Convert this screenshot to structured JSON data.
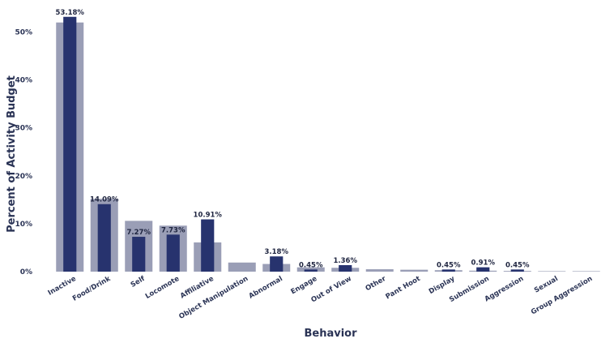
{
  "chart_data": {
    "type": "bar",
    "title": "",
    "xlabel": "Behavior",
    "ylabel": "Percent of Activity Budget",
    "ylim": [
      0,
      55
    ],
    "yticks": [
      "0%",
      "10%",
      "20%",
      "30%",
      "40%",
      "50%"
    ],
    "ytick_values": [
      0,
      10,
      20,
      30,
      40,
      50
    ],
    "grid": false,
    "legend": "none",
    "categories": [
      "Inactive",
      "Food/Drink",
      "Self",
      "Locomote",
      "Affiliative",
      "Object Manipulation",
      "Abnormal",
      "Engage",
      "Out of View",
      "Other",
      "Pant Hoot",
      "Display",
      "Submission",
      "Aggression",
      "Sexual",
      "Group Aggression"
    ],
    "series": [
      {
        "color": "#9a9eb6",
        "values": [
          52.0,
          15.2,
          10.6,
          9.6,
          6.1,
          1.9,
          1.6,
          0.9,
          0.8,
          0.5,
          0.4,
          0.3,
          0.2,
          0.15,
          0.1,
          0.1
        ]
      },
      {
        "color": "#27336e",
        "values": [
          53.18,
          14.09,
          7.27,
          7.73,
          10.91,
          0,
          3.18,
          0.45,
          1.36,
          0,
          0,
          0.45,
          0.91,
          0.45,
          0,
          0
        ],
        "labels": [
          "53.18%",
          "14.09%",
          "7.27%",
          "7.73%",
          "10.91%",
          "",
          "3.18%",
          "0.45%",
          "1.36%",
          "",
          "",
          "0.45%",
          "0.91%",
          "0.45%",
          "",
          ""
        ]
      }
    ]
  }
}
